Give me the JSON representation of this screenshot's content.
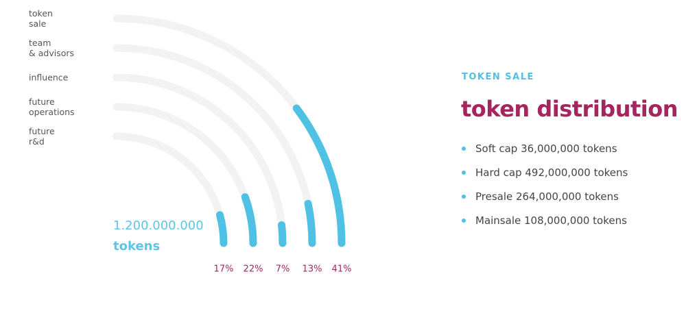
{
  "chart_data": {
    "type": "radial-bar",
    "categories": [
      "token\nsale",
      "team\n& advisors",
      "influence",
      "future\noperations",
      "future\nr&d"
    ],
    "values": [
      41,
      13,
      7,
      22,
      17
    ],
    "value_labels": [
      "41%",
      "13%",
      "7%",
      "22%",
      "17%"
    ],
    "color": "#4fc1e5",
    "track_color": "#f2f2f2",
    "total": "1.200.000.000",
    "total_unit": "tokens"
  },
  "info": {
    "eyebrow": "TOKEN SALE",
    "title": "token distribution",
    "items": [
      "Soft cap 36,000,000 tokens",
      "Hard cap 492,000,000 tokens",
      "Presale 264,000,000 tokens",
      "Mainsale 108,000,000 tokens"
    ]
  }
}
